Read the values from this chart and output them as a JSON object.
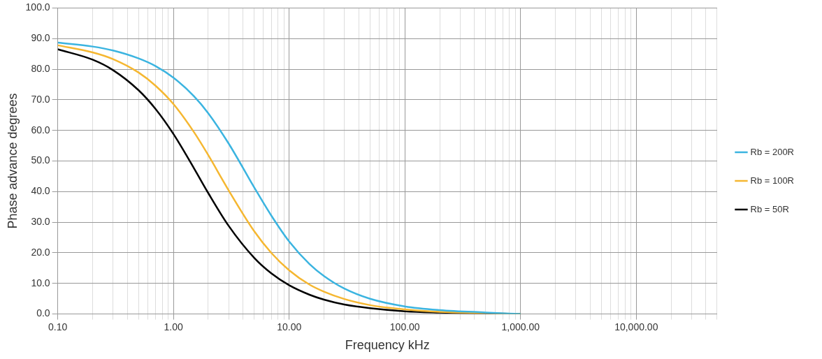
{
  "chart_data": {
    "type": "line",
    "xlabel": "Frequency kHz",
    "ylabel": "Phase advance degrees",
    "log": "x",
    "grid": true,
    "legend": "right",
    "marker": "none",
    "line_style": "solid",
    "x": [
      0.1,
      0.2,
      0.3,
      0.5,
      0.7,
      1,
      1.5,
      2,
      3,
      5,
      7,
      10,
      15,
      20,
      30,
      50,
      100,
      200,
      500,
      1000
    ],
    "xlim": [
      0.1,
      50000
    ],
    "ylim": [
      0,
      100
    ],
    "xticks": [
      {
        "value": 0.1,
        "label": "0.10"
      },
      {
        "value": 0.2,
        "label": null
      },
      {
        "value": 0.3,
        "label": null
      },
      {
        "value": 0.4,
        "label": null
      },
      {
        "value": 0.5,
        "label": null
      },
      {
        "value": 0.6,
        "label": null
      },
      {
        "value": 0.7,
        "label": null
      },
      {
        "value": 0.8,
        "label": null
      },
      {
        "value": 0.9,
        "label": null
      },
      {
        "value": 1,
        "label": "1.00"
      },
      {
        "value": 2,
        "label": null
      },
      {
        "value": 3,
        "label": null
      },
      {
        "value": 4,
        "label": null
      },
      {
        "value": 5,
        "label": null
      },
      {
        "value": 6,
        "label": null
      },
      {
        "value": 7,
        "label": null
      },
      {
        "value": 8,
        "label": null
      },
      {
        "value": 9,
        "label": null
      },
      {
        "value": 10,
        "label": "10.00"
      },
      {
        "value": 20,
        "label": null
      },
      {
        "value": 30,
        "label": null
      },
      {
        "value": 40,
        "label": null
      },
      {
        "value": 50,
        "label": null
      },
      {
        "value": 60,
        "label": null
      },
      {
        "value": 70,
        "label": null
      },
      {
        "value": 80,
        "label": null
      },
      {
        "value": 90,
        "label": null
      },
      {
        "value": 100,
        "label": "100.00"
      },
      {
        "value": 200,
        "label": null
      },
      {
        "value": 300,
        "label": null
      },
      {
        "value": 400,
        "label": null
      },
      {
        "value": 500,
        "label": null
      },
      {
        "value": 600,
        "label": null
      },
      {
        "value": 700,
        "label": null
      },
      {
        "value": 800,
        "label": null
      },
      {
        "value": 900,
        "label": null
      },
      {
        "value": 1000,
        "label": "1,000.00"
      },
      {
        "value": 2000,
        "label": null
      },
      {
        "value": 3000,
        "label": null
      },
      {
        "value": 4000,
        "label": null
      },
      {
        "value": 5000,
        "label": null
      },
      {
        "value": 6000,
        "label": null
      },
      {
        "value": 7000,
        "label": null
      },
      {
        "value": 8000,
        "label": null
      },
      {
        "value": 9000,
        "label": null
      },
      {
        "value": 10000,
        "label": "10,000.00"
      },
      {
        "value": 20000,
        "label": null
      },
      {
        "value": 30000,
        "label": null
      },
      {
        "value": 40000,
        "label": null
      },
      {
        "value": 50000,
        "label": null
      }
    ],
    "yticks": [
      {
        "value": 0,
        "label": "0.0"
      },
      {
        "value": 10,
        "label": "10.0"
      },
      {
        "value": 20,
        "label": "20.0"
      },
      {
        "value": 30,
        "label": "30.0"
      },
      {
        "value": 40,
        "label": "40.0"
      },
      {
        "value": 50,
        "label": "50.0"
      },
      {
        "value": 60,
        "label": "60.0"
      },
      {
        "value": 70,
        "label": "70.0"
      },
      {
        "value": 80,
        "label": "80.0"
      },
      {
        "value": 90,
        "label": "90.0"
      },
      {
        "value": 100,
        "label": "100.0"
      }
    ],
    "series": [
      {
        "name": "Rb = 200R",
        "color": "#3bb4e0",
        "values": [
          88.7,
          87.4,
          86.1,
          83.5,
          81.0,
          77.2,
          71.2,
          65.6,
          55.7,
          41.3,
          32.2,
          23.7,
          16.3,
          12.4,
          8.3,
          5.0,
          2.5,
          1.3,
          0.5,
          0.0
        ]
      },
      {
        "name": "Rb = 100R",
        "color": "#f5b731",
        "values": [
          87.8,
          85.5,
          83.3,
          78.9,
          74.6,
          68.6,
          59.5,
          51.9,
          40.4,
          27.0,
          20.0,
          14.3,
          9.6,
          7.3,
          4.9,
          2.9,
          1.5,
          0.7,
          0.3,
          0.0
        ]
      },
      {
        "name": "Rb = 50R",
        "color": "#000000",
        "values": [
          86.5,
          83.1,
          79.7,
          73.1,
          67.0,
          58.8,
          47.7,
          39.5,
          28.8,
          18.3,
          13.3,
          9.4,
          6.3,
          4.7,
          3.1,
          1.9,
          0.9,
          0.5,
          0.2,
          0.0
        ]
      }
    ]
  }
}
